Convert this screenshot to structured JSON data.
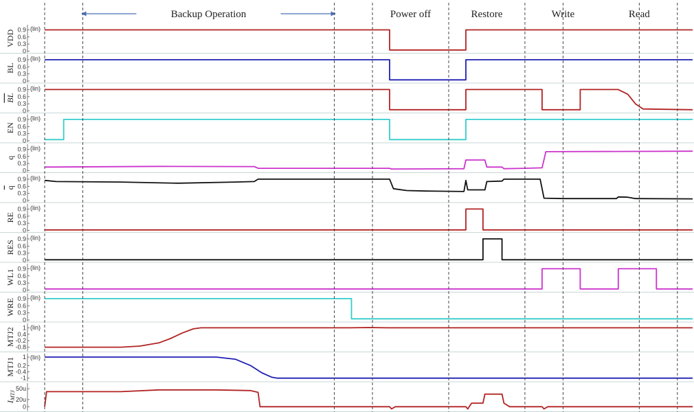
{
  "chart_data": {
    "type": "line",
    "phases": [
      {
        "label": "Backup Operation",
        "arrows": true
      },
      {
        "label": "Power off"
      },
      {
        "label": "Restore"
      },
      {
        "label": "Write"
      },
      {
        "label": "Read"
      }
    ],
    "time_markers": [
      0,
      1,
      7.6,
      8.6,
      10.6,
      12.6,
      13.6,
      15.6,
      16.6
    ],
    "x_range": [
      0,
      17
    ],
    "lanes": [
      {
        "label": "VDD",
        "scale_tag": "(lin)",
        "ylim": [
          0,
          1
        ],
        "ticks": [
          "0.9",
          "0.6",
          "0.3",
          "0"
        ],
        "tick_values": [
          0.9,
          0.6,
          0.3,
          0
        ],
        "color": "#b22222",
        "points": [
          [
            0,
            0.9
          ],
          [
            9.05,
            0.9
          ],
          [
            9.05,
            0.05
          ],
          [
            11.05,
            0.05
          ],
          [
            11.05,
            0.9
          ],
          [
            17,
            0.9
          ]
        ]
      },
      {
        "label": "BL",
        "scale_tag": "(lin)",
        "ylim": [
          0,
          1
        ],
        "ticks": [
          "0.9",
          "0.6",
          "0.3",
          "0"
        ],
        "tick_values": [
          0.9,
          0.6,
          0.3,
          0
        ],
        "color": "#1f1fb4",
        "points": [
          [
            0,
            0.9
          ],
          [
            9.05,
            0.9
          ],
          [
            9.05,
            0.05
          ],
          [
            11.05,
            0.05
          ],
          [
            11.05,
            0.9
          ],
          [
            17,
            0.9
          ]
        ]
      },
      {
        "label": "BL",
        "overline": true,
        "italic": true,
        "scale_tag": "(lin)",
        "ylim": [
          0,
          1
        ],
        "ticks": [
          "0.9",
          "0.6",
          "0.3",
          "0"
        ],
        "tick_values": [
          0.9,
          0.6,
          0.3,
          0
        ],
        "color": "#b22222",
        "points": [
          [
            0,
            0.9
          ],
          [
            9.05,
            0.9
          ],
          [
            9.05,
            0.05
          ],
          [
            11.05,
            0.05
          ],
          [
            11.05,
            0.9
          ],
          [
            13.05,
            0.9
          ],
          [
            13.05,
            0.05
          ],
          [
            14.05,
            0.05
          ],
          [
            14.05,
            0.9
          ],
          [
            15.05,
            0.9
          ],
          [
            15.3,
            0.7
          ],
          [
            15.5,
            0.3
          ],
          [
            15.7,
            0.08
          ],
          [
            17,
            0.05
          ]
        ]
      },
      {
        "label": "EN",
        "scale_tag": "(lin)",
        "ylim": [
          0,
          1
        ],
        "ticks": [
          "0.9",
          "0.6",
          "0.3",
          "0"
        ],
        "tick_values": [
          0.9,
          0.6,
          0.3,
          0
        ],
        "color": "#33cccc",
        "points": [
          [
            0,
            0.05
          ],
          [
            0.5,
            0.05
          ],
          [
            0.5,
            0.9
          ],
          [
            9.05,
            0.9
          ],
          [
            9.05,
            0.05
          ],
          [
            11.05,
            0.05
          ],
          [
            11.05,
            0.9
          ],
          [
            17,
            0.9
          ]
        ]
      },
      {
        "label": "q",
        "scale_tag": "(lin)",
        "ylim": [
          0,
          1
        ],
        "ticks": [
          "0.9",
          "0.6",
          "0.3",
          "0"
        ],
        "tick_values": [
          0.9,
          0.6,
          0.3,
          0
        ],
        "color": "#cc33cc",
        "points": [
          [
            0,
            0.15
          ],
          [
            3,
            0.18
          ],
          [
            5.5,
            0.17
          ],
          [
            5.6,
            0.1
          ],
          [
            9.05,
            0.1
          ],
          [
            9.1,
            0.07
          ],
          [
            11.0,
            0.08
          ],
          [
            11.05,
            0.45
          ],
          [
            11.55,
            0.45
          ],
          [
            11.6,
            0.15
          ],
          [
            12.0,
            0.15
          ],
          [
            12.05,
            0.08
          ],
          [
            12.6,
            0.1
          ],
          [
            13.05,
            0.12
          ],
          [
            13.15,
            0.8
          ],
          [
            17,
            0.82
          ]
        ]
      },
      {
        "label": "q",
        "overline": true,
        "scale_tag": "(lin)",
        "ylim": [
          0,
          1
        ],
        "ticks": [
          "0.9",
          "0.6",
          "0.3",
          "0"
        ],
        "tick_values": [
          0.9,
          0.6,
          0.3,
          0
        ],
        "color": "#111111",
        "points": [
          [
            0,
            0.85
          ],
          [
            0.3,
            0.8
          ],
          [
            2,
            0.78
          ],
          [
            3.5,
            0.73
          ],
          [
            5,
            0.78
          ],
          [
            5.5,
            0.8
          ],
          [
            5.6,
            0.9
          ],
          [
            9.05,
            0.9
          ],
          [
            9.15,
            0.5
          ],
          [
            9.5,
            0.42
          ],
          [
            10,
            0.4
          ],
          [
            11.0,
            0.38
          ],
          [
            11.05,
            0.85
          ],
          [
            11.1,
            0.45
          ],
          [
            11.55,
            0.45
          ],
          [
            11.6,
            0.8
          ],
          [
            12.0,
            0.82
          ],
          [
            12.05,
            0.9
          ],
          [
            13.0,
            0.9
          ],
          [
            13.1,
            0.1
          ],
          [
            13.6,
            0.08
          ],
          [
            15.0,
            0.08
          ],
          [
            15.05,
            0.15
          ],
          [
            15.3,
            0.14
          ],
          [
            15.5,
            0.08
          ],
          [
            17,
            0.07
          ]
        ]
      },
      {
        "label": "RE",
        "scale_tag": "(lin)",
        "ylim": [
          0,
          1
        ],
        "ticks": [
          "0.9",
          "0.6",
          "0.3",
          "0"
        ],
        "tick_values": [
          0.9,
          0.6,
          0.3,
          0
        ],
        "color": "#b22222",
        "points": [
          [
            0,
            0.02
          ],
          [
            11.05,
            0.02
          ],
          [
            11.05,
            0.9
          ],
          [
            11.5,
            0.9
          ],
          [
            11.5,
            0.02
          ],
          [
            17,
            0.02
          ]
        ]
      },
      {
        "label": "RES",
        "scale_tag": "(lin)",
        "ylim": [
          0,
          1
        ],
        "ticks": [
          "0.9",
          "0.6",
          "0.3",
          "0"
        ],
        "tick_values": [
          0.9,
          0.6,
          0.3,
          0
        ],
        "color": "#111111",
        "points": [
          [
            0,
            0.02
          ],
          [
            11.5,
            0.02
          ],
          [
            11.5,
            0.9
          ],
          [
            12.0,
            0.9
          ],
          [
            12.0,
            0.02
          ],
          [
            17,
            0.02
          ]
        ]
      },
      {
        "label": "WL1",
        "scale_tag": "(lin)",
        "ylim": [
          0,
          1
        ],
        "ticks": [
          "0.9",
          "0.6",
          "0.3",
          "0"
        ],
        "tick_values": [
          0.9,
          0.6,
          0.3,
          0
        ],
        "color": "#cc33cc",
        "points": [
          [
            0,
            0.05
          ],
          [
            13.05,
            0.05
          ],
          [
            13.05,
            0.9
          ],
          [
            14.05,
            0.9
          ],
          [
            14.05,
            0.05
          ],
          [
            15.05,
            0.05
          ],
          [
            15.05,
            0.9
          ],
          [
            16.05,
            0.9
          ],
          [
            16.05,
            0.05
          ],
          [
            17,
            0.05
          ]
        ]
      },
      {
        "label": "WRE",
        "scale_tag": "(lin)",
        "ylim": [
          0,
          1
        ],
        "ticks": [
          "0.9",
          "0.6",
          "0.3",
          "0"
        ],
        "tick_values": [
          0.9,
          0.6,
          0.3,
          0
        ],
        "color": "#33cccc",
        "points": [
          [
            0,
            0.9
          ],
          [
            8.05,
            0.9
          ],
          [
            8.05,
            0.05
          ],
          [
            17,
            0.05
          ]
        ]
      },
      {
        "label": "MTJ2",
        "scale_tag": "(lin)",
        "ylim": [
          -1.05,
          1.15
        ],
        "ticks": [
          "1",
          "0.4",
          "-0.2",
          "-0.8"
        ],
        "tick_values": [
          1,
          0.4,
          -0.2,
          -0.8
        ],
        "color": "#b22222",
        "points": [
          [
            0,
            -0.8
          ],
          [
            2,
            -0.8
          ],
          [
            2.5,
            -0.7
          ],
          [
            3.0,
            -0.4
          ],
          [
            3.3,
            0
          ],
          [
            3.6,
            0.5
          ],
          [
            3.9,
            0.9
          ],
          [
            4.1,
            1.0
          ],
          [
            8,
            1.0
          ],
          [
            8.5,
            1.02
          ],
          [
            9,
            1.0
          ],
          [
            17,
            1.0
          ]
        ]
      },
      {
        "label": "MTJ1",
        "scale_tag": "(lin)",
        "ylim": [
          -1.15,
          1.1
        ],
        "ticks": [
          "1",
          "0.2",
          "-0.4",
          "-1"
        ],
        "tick_values": [
          1,
          0.2,
          -0.4,
          -1
        ],
        "color": "#1f1fb4",
        "points": [
          [
            0,
            1.0
          ],
          [
            4.5,
            1.0
          ],
          [
            5.0,
            0.8
          ],
          [
            5.4,
            0.2
          ],
          [
            5.7,
            -0.5
          ],
          [
            5.95,
            -0.9
          ],
          [
            6.1,
            -1.0
          ],
          [
            17,
            -1.0
          ]
        ]
      },
      {
        "label": "I",
        "sub": "MTJ",
        "italic": true,
        "scale_tag": "",
        "ylim": [
          -8,
          58
        ],
        "ticks": [
          "50u",
          "20u",
          "0"
        ],
        "tick_values": [
          50,
          20,
          0
        ],
        "color": "#b22222",
        "points": [
          [
            0,
            0
          ],
          [
            0.05,
            42
          ],
          [
            2,
            42
          ],
          [
            3,
            47
          ],
          [
            4.5,
            47
          ],
          [
            5.4,
            45
          ],
          [
            5.6,
            40
          ],
          [
            5.65,
            0
          ],
          [
            9.05,
            0
          ],
          [
            9.1,
            -6
          ],
          [
            9.2,
            0
          ],
          [
            11.05,
            0
          ],
          [
            11.1,
            -6
          ],
          [
            11.2,
            10
          ],
          [
            11.5,
            10
          ],
          [
            11.55,
            35
          ],
          [
            12.0,
            35
          ],
          [
            12.05,
            10
          ],
          [
            12.2,
            0
          ],
          [
            13.05,
            0
          ],
          [
            13.1,
            -6
          ],
          [
            13.2,
            0
          ],
          [
            17,
            0
          ]
        ]
      }
    ]
  }
}
